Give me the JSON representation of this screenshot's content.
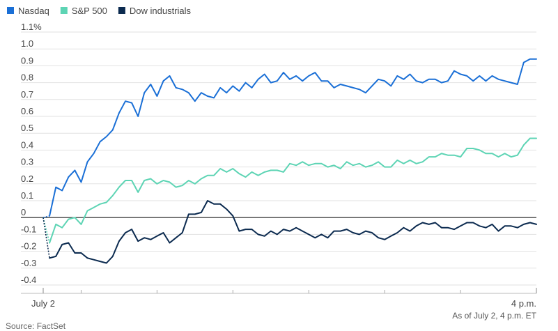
{
  "chart_data": {
    "type": "line",
    "title": "",
    "xlabel": "",
    "ylabel": "",
    "ylim": [
      -0.4,
      1.1
    ],
    "yticks": [
      -0.4,
      -0.3,
      -0.2,
      -0.1,
      0,
      0.1,
      0.2,
      0.3,
      0.4,
      0.5,
      0.6,
      0.7,
      0.8,
      0.9,
      1.0,
      1.1
    ],
    "ytick_labels": [
      "-0.4",
      "-0.3",
      "-0.2",
      "-0.1",
      "0",
      "0.1",
      "0.2",
      "0.3",
      "0.4",
      "0.5",
      "0.6",
      "0.7",
      "0.8",
      "0.9",
      "1.0",
      "1.1%"
    ],
    "xlim": [
      0,
      390
    ],
    "x_minor_ticks": [
      30,
      90,
      150,
      210,
      270,
      330
    ],
    "x_tick_labels": [
      {
        "x": 0,
        "label": "July 2"
      },
      {
        "x": 390,
        "label": "4 p.m."
      }
    ],
    "grid": true,
    "legend_position": "top-left",
    "series": [
      {
        "name": "Nasdaq",
        "color": "#1a6fd6",
        "x": [
          0,
          5,
          10,
          15,
          20,
          25,
          30,
          35,
          40,
          45,
          50,
          55,
          60,
          65,
          70,
          75,
          80,
          85,
          90,
          95,
          100,
          105,
          110,
          115,
          120,
          125,
          130,
          135,
          140,
          145,
          150,
          155,
          160,
          165,
          170,
          175,
          180,
          185,
          190,
          195,
          200,
          205,
          210,
          215,
          220,
          225,
          230,
          235,
          240,
          245,
          250,
          255,
          260,
          265,
          270,
          275,
          280,
          285,
          290,
          295,
          300,
          305,
          310,
          315,
          320,
          325,
          330,
          335,
          340,
          345,
          350,
          355,
          360,
          365,
          370,
          375,
          380,
          385,
          390
        ],
        "values": [
          0.0,
          0.01,
          0.18,
          0.16,
          0.24,
          0.28,
          0.21,
          0.33,
          0.38,
          0.45,
          0.48,
          0.52,
          0.62,
          0.69,
          0.68,
          0.6,
          0.74,
          0.79,
          0.72,
          0.81,
          0.84,
          0.77,
          0.76,
          0.74,
          0.69,
          0.74,
          0.72,
          0.71,
          0.77,
          0.74,
          0.78,
          0.75,
          0.8,
          0.77,
          0.82,
          0.85,
          0.8,
          0.81,
          0.86,
          0.82,
          0.84,
          0.81,
          0.84,
          0.86,
          0.81,
          0.81,
          0.77,
          0.79,
          0.78,
          0.77,
          0.76,
          0.74,
          0.78,
          0.82,
          0.81,
          0.78,
          0.84,
          0.82,
          0.85,
          0.81,
          0.8,
          0.82,
          0.82,
          0.8,
          0.81,
          0.87,
          0.85,
          0.84,
          0.81,
          0.84,
          0.81,
          0.84,
          0.82,
          0.81,
          0.8,
          0.79,
          0.92,
          0.94,
          0.94
        ]
      },
      {
        "name": "S&P 500",
        "color": "#5dd4b4",
        "x": [
          0,
          5,
          10,
          15,
          20,
          25,
          30,
          35,
          40,
          45,
          50,
          55,
          60,
          65,
          70,
          75,
          80,
          85,
          90,
          95,
          100,
          105,
          110,
          115,
          120,
          125,
          130,
          135,
          140,
          145,
          150,
          155,
          160,
          165,
          170,
          175,
          180,
          185,
          190,
          195,
          200,
          205,
          210,
          215,
          220,
          225,
          230,
          235,
          240,
          245,
          250,
          255,
          260,
          265,
          270,
          275,
          280,
          285,
          290,
          295,
          300,
          305,
          310,
          315,
          320,
          325,
          330,
          335,
          340,
          345,
          350,
          355,
          360,
          365,
          370,
          375,
          380,
          385,
          390
        ],
        "values": [
          0.0,
          -0.15,
          -0.04,
          -0.06,
          -0.01,
          0.0,
          -0.04,
          0.04,
          0.06,
          0.08,
          0.09,
          0.13,
          0.18,
          0.22,
          0.22,
          0.15,
          0.22,
          0.23,
          0.2,
          0.22,
          0.21,
          0.18,
          0.19,
          0.22,
          0.2,
          0.23,
          0.25,
          0.25,
          0.29,
          0.27,
          0.29,
          0.26,
          0.24,
          0.27,
          0.25,
          0.27,
          0.28,
          0.28,
          0.27,
          0.32,
          0.31,
          0.33,
          0.31,
          0.32,
          0.32,
          0.3,
          0.31,
          0.29,
          0.33,
          0.31,
          0.32,
          0.3,
          0.31,
          0.33,
          0.3,
          0.3,
          0.34,
          0.32,
          0.34,
          0.32,
          0.33,
          0.36,
          0.36,
          0.38,
          0.37,
          0.37,
          0.36,
          0.41,
          0.41,
          0.4,
          0.38,
          0.38,
          0.36,
          0.38,
          0.36,
          0.37,
          0.43,
          0.47,
          0.47
        ]
      },
      {
        "name": "Dow industrials",
        "color": "#0b2a4f",
        "x": [
          0,
          5,
          10,
          15,
          20,
          25,
          30,
          35,
          40,
          45,
          50,
          55,
          60,
          65,
          70,
          75,
          80,
          85,
          90,
          95,
          100,
          105,
          110,
          115,
          120,
          125,
          130,
          135,
          140,
          145,
          150,
          155,
          160,
          165,
          170,
          175,
          180,
          185,
          190,
          195,
          200,
          205,
          210,
          215,
          220,
          225,
          230,
          235,
          240,
          245,
          250,
          255,
          260,
          265,
          270,
          275,
          280,
          285,
          290,
          295,
          300,
          305,
          310,
          315,
          320,
          325,
          330,
          335,
          340,
          345,
          350,
          355,
          360,
          365,
          370,
          375,
          380,
          385,
          390
        ],
        "values": [
          0.0,
          -0.24,
          -0.23,
          -0.16,
          -0.15,
          -0.21,
          -0.21,
          -0.24,
          -0.25,
          -0.26,
          -0.27,
          -0.23,
          -0.14,
          -0.09,
          -0.07,
          -0.14,
          -0.12,
          -0.13,
          -0.11,
          -0.09,
          -0.15,
          -0.12,
          -0.09,
          0.02,
          0.02,
          0.03,
          0.1,
          0.08,
          0.08,
          0.05,
          0.01,
          -0.08,
          -0.07,
          -0.07,
          -0.1,
          -0.11,
          -0.08,
          -0.1,
          -0.07,
          -0.08,
          -0.06,
          -0.08,
          -0.1,
          -0.12,
          -0.1,
          -0.12,
          -0.08,
          -0.08,
          -0.07,
          -0.09,
          -0.1,
          -0.08,
          -0.09,
          -0.12,
          -0.13,
          -0.11,
          -0.09,
          -0.06,
          -0.08,
          -0.05,
          -0.03,
          -0.04,
          -0.03,
          -0.06,
          -0.06,
          -0.07,
          -0.05,
          -0.03,
          -0.03,
          -0.05,
          -0.06,
          -0.04,
          -0.08,
          -0.05,
          -0.05,
          -0.06,
          -0.04,
          -0.03,
          -0.04
        ]
      }
    ],
    "note": "As of July 2, 4 p.m. ET",
    "source": "Source: FactSet"
  }
}
